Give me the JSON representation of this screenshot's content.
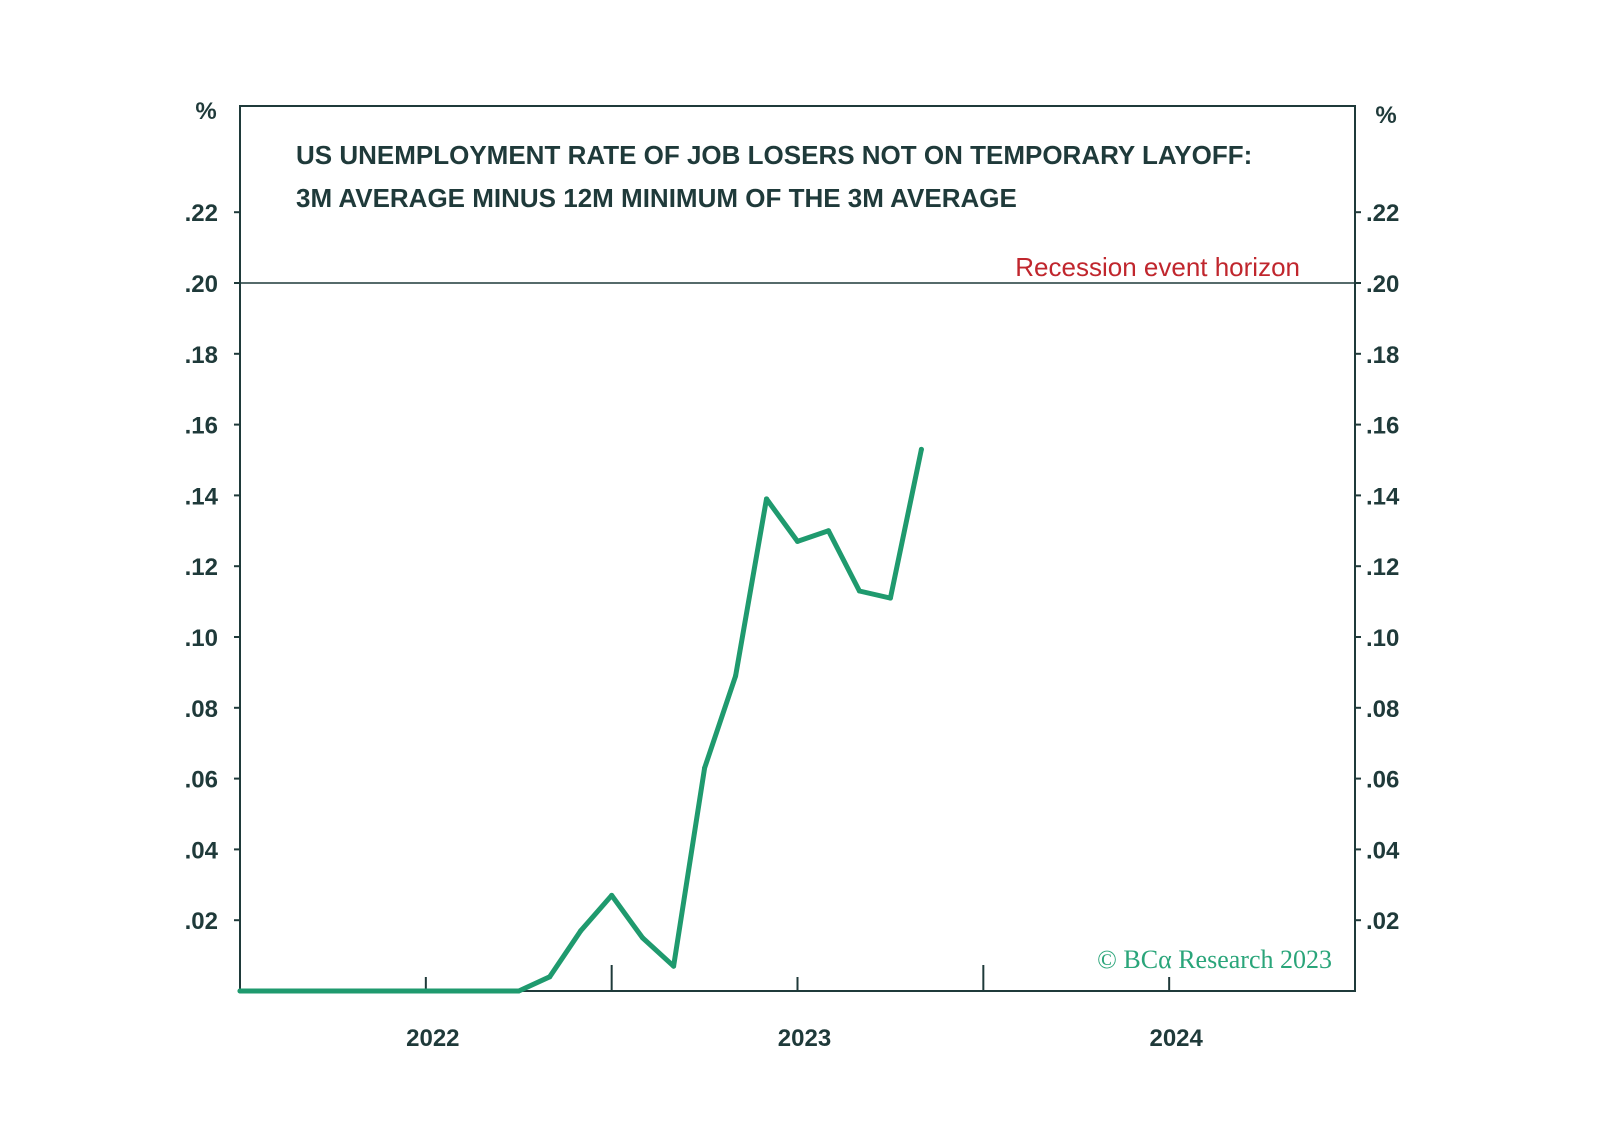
{
  "chart_data": {
    "type": "line",
    "title_lines": [
      "US UNEMPLOYMENT RATE OF JOB LOSERS NOT ON TEMPORARY LAYOFF:",
      "3M AVERAGE MINUS 12M MINIMUM OF THE 3M AVERAGE"
    ],
    "y_unit_left": "%",
    "y_unit_right": "%",
    "ylim": [
      0,
      0.25
    ],
    "y_ticks": [
      0.02,
      0.04,
      0.06,
      0.08,
      0.1,
      0.12,
      0.14,
      0.16,
      0.18,
      0.2,
      0.22
    ],
    "y_tick_labels": [
      ".02",
      ".04",
      ".06",
      ".08",
      ".10",
      ".12",
      ".14",
      ".16",
      ".18",
      ".20",
      ".22"
    ],
    "x_range": [
      "2021-07",
      "2024-07"
    ],
    "x_year_labels": [
      "2022",
      "2023",
      "2024"
    ],
    "series": [
      {
        "color": "#1f9a6e",
        "x": [
          "2021-07",
          "2021-08",
          "2021-09",
          "2021-10",
          "2021-11",
          "2021-12",
          "2022-01",
          "2022-02",
          "2022-03",
          "2022-04",
          "2022-05",
          "2022-06",
          "2022-07",
          "2022-08",
          "2022-09",
          "2022-10",
          "2022-11",
          "2022-12",
          "2023-01",
          "2023-02",
          "2023-03",
          "2023-04",
          "2023-05"
        ],
        "values": [
          0,
          0,
          0,
          0,
          0,
          0,
          0,
          0,
          0,
          0,
          0.004,
          0.017,
          0.027,
          0.015,
          0.007,
          0.063,
          0.089,
          0.139,
          0.127,
          0.13,
          0.113,
          0.111,
          0.153
        ]
      }
    ],
    "reference_line": {
      "value": 0.2,
      "label": "Recession event horizon",
      "label_color": "#c0262d"
    },
    "copyright": "© BCα Research 2023",
    "copyright_color": "#2aa57a",
    "grid": false
  }
}
